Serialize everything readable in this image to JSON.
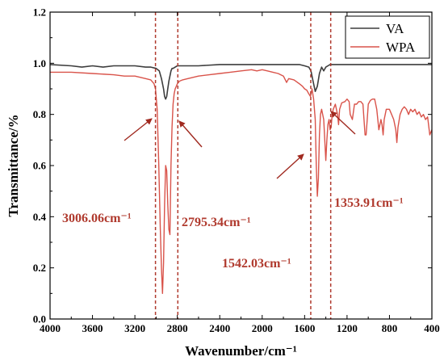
{
  "chart_data": {
    "type": "line",
    "xlabel": "Wavenumber/cm⁻¹",
    "ylabel": "Transmittance/%",
    "xlim": [
      4000,
      400
    ],
    "ylim": [
      0.0,
      1.2
    ],
    "x_reversed": true,
    "x_ticks": [
      4000,
      3600,
      3200,
      2800,
      2400,
      2000,
      1600,
      1200,
      800,
      400
    ],
    "y_ticks": [
      0.0,
      0.2,
      0.4,
      0.6,
      0.8,
      1.0,
      1.2
    ],
    "x_tick_labels": [
      "4000",
      "3600",
      "3200",
      "2800",
      "2400",
      "2000",
      "1600",
      "1200",
      "800",
      "400"
    ],
    "y_tick_labels": [
      "0.0",
      "0.2",
      "0.4",
      "0.6",
      "0.8",
      "1.0",
      "1.2"
    ],
    "legend_position": "top-right",
    "grid": false,
    "series": [
      {
        "name": "VA",
        "color": "#3d3d3d",
        "x": [
          4000,
          3800,
          3700,
          3600,
          3500,
          3400,
          3300,
          3200,
          3100,
          3050,
          3000,
          2970,
          2950,
          2930,
          2920,
          2910,
          2900,
          2890,
          2880,
          2870,
          2860,
          2850,
          2840,
          2820,
          2800,
          2700,
          2600,
          2400,
          2300,
          2200,
          2100,
          2000,
          1900,
          1800,
          1700,
          1650,
          1600,
          1560,
          1540,
          1520,
          1500,
          1480,
          1460,
          1440,
          1420,
          1400,
          1380,
          1360,
          1340,
          1300,
          1200,
          1100,
          1000,
          900,
          800,
          700,
          600,
          500,
          400
        ],
        "y": [
          0.995,
          0.99,
          0.985,
          0.99,
          0.985,
          0.99,
          0.99,
          0.99,
          0.985,
          0.985,
          0.98,
          0.97,
          0.94,
          0.9,
          0.87,
          0.86,
          0.87,
          0.9,
          0.93,
          0.95,
          0.97,
          0.98,
          0.98,
          0.985,
          0.99,
          0.99,
          0.99,
          0.995,
          0.995,
          0.995,
          0.995,
          0.995,
          0.995,
          0.995,
          0.995,
          0.995,
          0.99,
          0.985,
          0.97,
          0.93,
          0.89,
          0.91,
          0.96,
          0.985,
          0.97,
          0.985,
          0.99,
          0.995,
          0.995,
          0.995,
          0.995,
          0.995,
          0.995,
          0.995,
          0.995,
          0.995,
          0.995,
          0.995,
          0.995
        ]
      },
      {
        "name": "WPA",
        "color": "#d9534a",
        "x": [
          4000,
          3800,
          3600,
          3400,
          3300,
          3200,
          3100,
          3050,
          3020,
          3006,
          2990,
          2975,
          2960,
          2950,
          2940,
          2930,
          2920,
          2910,
          2900,
          2890,
          2880,
          2870,
          2860,
          2850,
          2840,
          2830,
          2820,
          2810,
          2800,
          2780,
          2750,
          2700,
          2600,
          2500,
          2400,
          2300,
          2200,
          2100,
          2050,
          2000,
          1950,
          1900,
          1850,
          1800,
          1770,
          1750,
          1700,
          1650,
          1620,
          1600,
          1580,
          1560,
          1545,
          1530,
          1515,
          1500,
          1490,
          1480,
          1470,
          1460,
          1450,
          1440,
          1430,
          1420,
          1410,
          1400,
          1390,
          1380,
          1370,
          1360,
          1350,
          1340,
          1330,
          1310,
          1290,
          1280,
          1270,
          1250,
          1220,
          1200,
          1180,
          1170,
          1150,
          1130,
          1110,
          1090,
          1070,
          1050,
          1040,
          1030,
          1020,
          1010,
          1000,
          980,
          960,
          940,
          920,
          900,
          880,
          870,
          860,
          850,
          840,
          830,
          820,
          800,
          780,
          760,
          740,
          730,
          720,
          700,
          680,
          660,
          640,
          620,
          600,
          580,
          560,
          540,
          520,
          500,
          480,
          460,
          440,
          420,
          400
        ],
        "y": [
          0.965,
          0.965,
          0.96,
          0.955,
          0.95,
          0.95,
          0.94,
          0.935,
          0.92,
          0.9,
          0.82,
          0.6,
          0.35,
          0.2,
          0.1,
          0.22,
          0.45,
          0.6,
          0.58,
          0.45,
          0.35,
          0.33,
          0.6,
          0.75,
          0.84,
          0.88,
          0.9,
          0.91,
          0.92,
          0.93,
          0.935,
          0.94,
          0.95,
          0.955,
          0.96,
          0.965,
          0.97,
          0.975,
          0.97,
          0.975,
          0.97,
          0.965,
          0.96,
          0.95,
          0.925,
          0.94,
          0.935,
          0.92,
          0.91,
          0.9,
          0.895,
          0.88,
          0.87,
          0.9,
          0.86,
          0.78,
          0.6,
          0.48,
          0.55,
          0.72,
          0.8,
          0.82,
          0.8,
          0.78,
          0.7,
          0.62,
          0.7,
          0.76,
          0.78,
          0.74,
          0.75,
          0.8,
          0.82,
          0.84,
          0.8,
          0.76,
          0.82,
          0.845,
          0.85,
          0.86,
          0.85,
          0.8,
          0.78,
          0.84,
          0.84,
          0.85,
          0.85,
          0.84,
          0.78,
          0.72,
          0.72,
          0.78,
          0.84,
          0.855,
          0.86,
          0.86,
          0.82,
          0.74,
          0.78,
          0.76,
          0.72,
          0.78,
          0.8,
          0.82,
          0.82,
          0.82,
          0.8,
          0.78,
          0.74,
          0.69,
          0.75,
          0.8,
          0.82,
          0.83,
          0.82,
          0.8,
          0.82,
          0.81,
          0.82,
          0.8,
          0.81,
          0.79,
          0.8,
          0.78,
          0.79,
          0.72,
          0.74
        ]
      }
    ],
    "vlines": [
      {
        "x": 3006.06,
        "color": "#b03a2e"
      },
      {
        "x": 2795.34,
        "color": "#b03a2e"
      },
      {
        "x": 1542.03,
        "color": "#b03a2e"
      },
      {
        "x": 1353.91,
        "color": "#b03a2e"
      }
    ],
    "annotations": [
      {
        "text": "3006.06cm⁻¹",
        "color": "#b03a2e"
      },
      {
        "text": "2795.34cm⁻¹",
        "color": "#b03a2e"
      },
      {
        "text": "1542.03cm⁻¹",
        "color": "#b03a2e"
      },
      {
        "text": "1353.91cm⁻¹",
        "color": "#b03a2e"
      }
    ]
  }
}
